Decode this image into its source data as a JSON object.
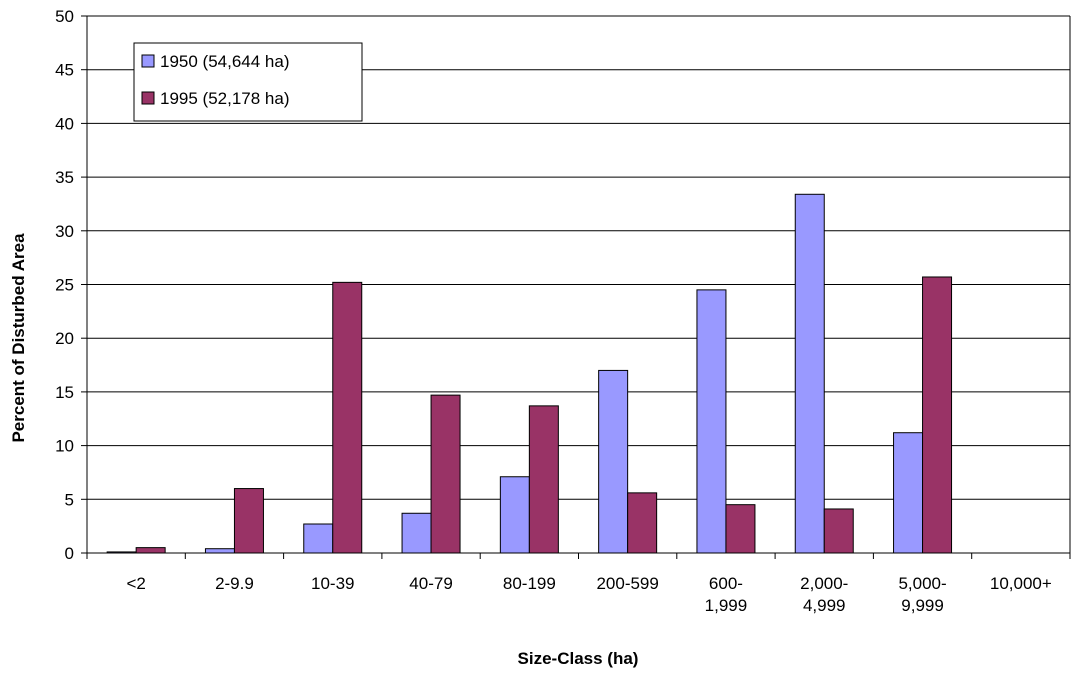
{
  "chart_data": {
    "type": "bar",
    "title": "",
    "xlabel": "Size-Class (ha)",
    "ylabel": "Percent of Disturbed Area",
    "ylim": [
      0,
      50
    ],
    "yticks": [
      0,
      5,
      10,
      15,
      20,
      25,
      30,
      35,
      40,
      45,
      50
    ],
    "grid": true,
    "legend_position": "top-left",
    "categories": [
      [
        "<2"
      ],
      [
        "2-9.9"
      ],
      [
        "10-39"
      ],
      [
        "40-79"
      ],
      [
        "80-199"
      ],
      [
        "200-599"
      ],
      [
        "600-",
        "1,999"
      ],
      [
        "2,000-",
        "4,999"
      ],
      [
        "5,000-",
        "9,999"
      ],
      [
        "10,000+"
      ]
    ],
    "series": [
      {
        "name": "1950 (54,644 ha)",
        "color": "#9999ff",
        "values": [
          0.1,
          0.4,
          2.7,
          3.7,
          7.1,
          17.0,
          24.5,
          33.4,
          11.2,
          0
        ]
      },
      {
        "name": "1995 (52,178 ha)",
        "color": "#993366",
        "values": [
          0.5,
          6.0,
          25.2,
          14.7,
          13.7,
          5.6,
          4.5,
          4.1,
          25.7,
          0
        ]
      }
    ]
  }
}
